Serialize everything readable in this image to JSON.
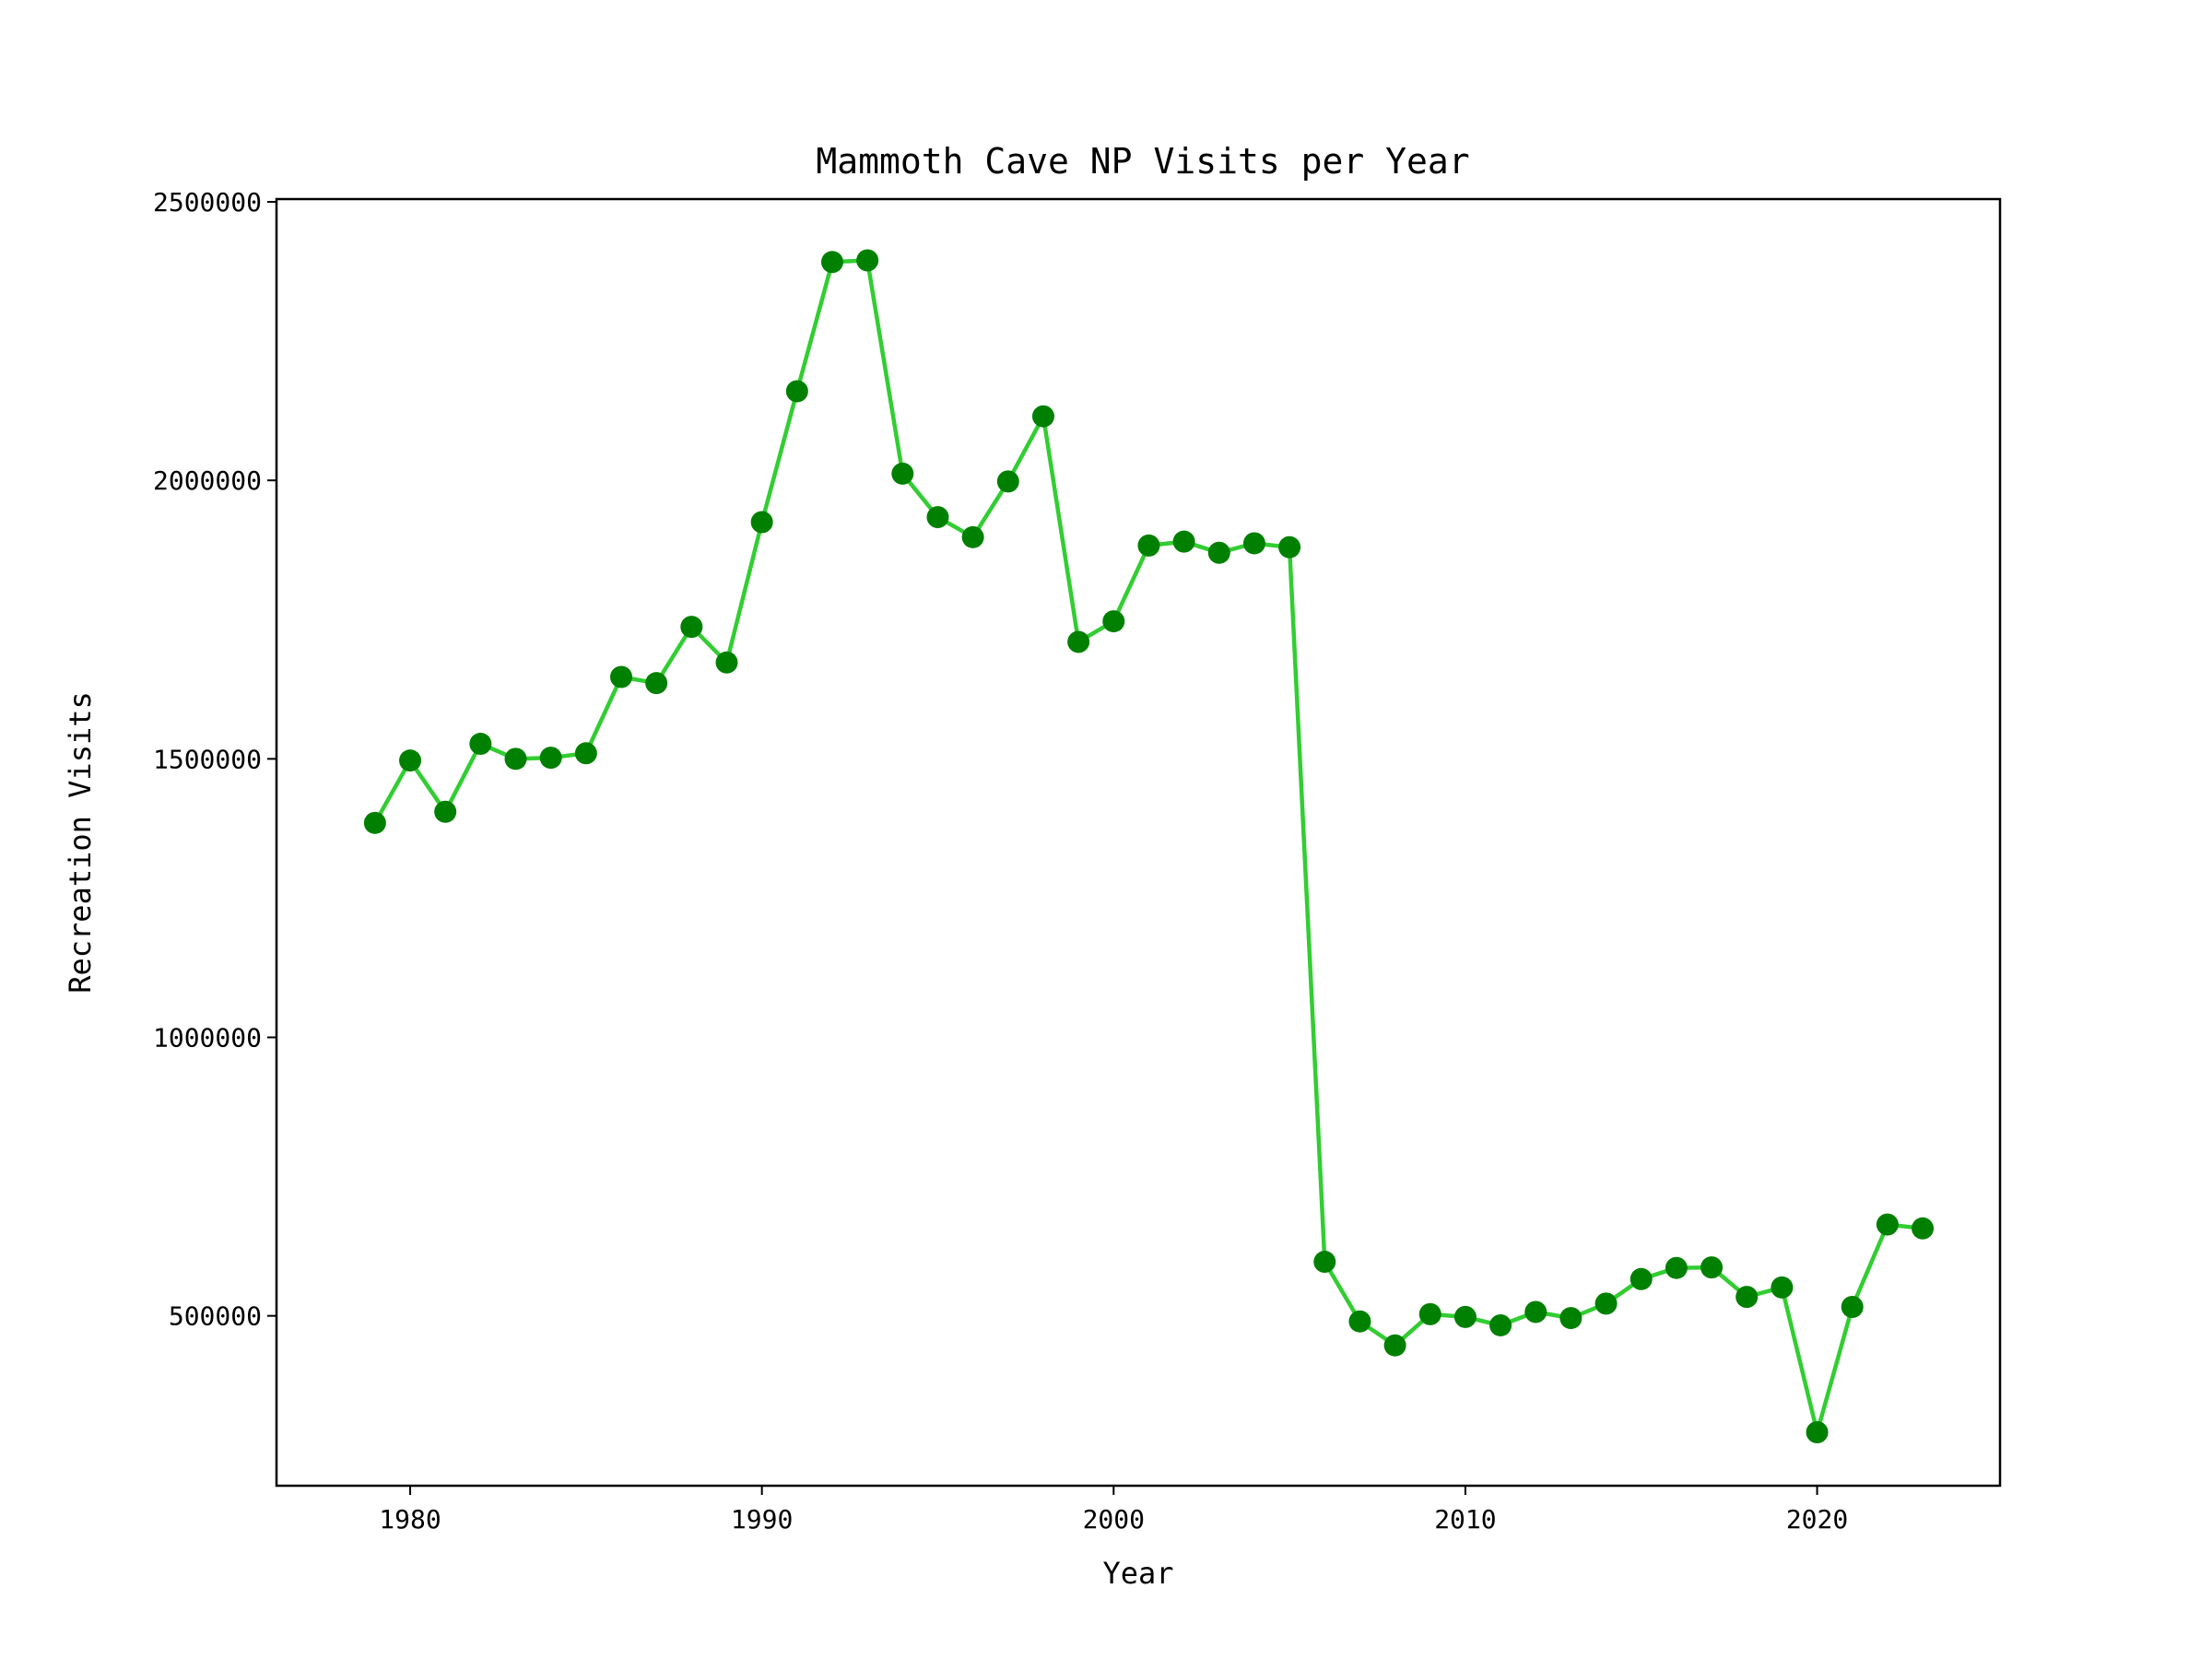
{
  "chart_data": {
    "type": "line",
    "title": "Mammoth Cave NP Visits per Year",
    "xlabel": "Year",
    "ylabel": "Recreation Visits",
    "xlim": [
      1976.2,
      2025.2
    ],
    "ylim": [
      195000,
      2505000
    ],
    "x_ticks": [
      1980,
      1990,
      2000,
      2010,
      2020
    ],
    "y_ticks": [
      500000,
      1000000,
      1500000,
      2000000,
      2500000
    ],
    "grid": false,
    "legend": "none",
    "line_color": "#32cd32",
    "marker_color": "#008000",
    "series": [
      {
        "x": [
          1979,
          1980,
          1981,
          1982,
          1983,
          1984,
          1985,
          1986,
          1987,
          1988,
          1989,
          1990,
          1991,
          1992,
          1993,
          1994,
          1995,
          1996,
          1997,
          1998,
          1999,
          2000,
          2001,
          2002,
          2003,
          2004,
          2005,
          2006,
          2007,
          2008,
          2009,
          2010,
          2011,
          2012,
          2013,
          2014,
          2015,
          2016,
          2017,
          2018,
          2019,
          2020,
          2021,
          2022,
          2023
        ],
        "values": [
          1385000,
          1497000,
          1405000,
          1527000,
          1500000,
          1502000,
          1510000,
          1647000,
          1636000,
          1737000,
          1673000,
          1925000,
          2160000,
          2392000,
          2395000,
          2012000,
          1934000,
          1898000,
          1998000,
          2115000,
          1710000,
          1747000,
          1883000,
          1890000,
          1870000,
          1887000,
          1880000,
          597000,
          490000,
          447000,
          503000,
          498000,
          483000,
          507000,
          496000,
          522000,
          566000,
          586000,
          587000,
          534000,
          551000,
          291000,
          516000,
          664000,
          657000
        ]
      }
    ]
  }
}
